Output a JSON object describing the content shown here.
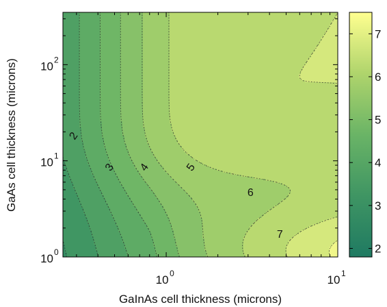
{
  "chart_data": {
    "type": "contour",
    "xlabel": "GaInAs cell thickness (microns)",
    "ylabel": "GaAs cell thickness (microns)",
    "x_scale": "log",
    "y_scale": "log",
    "xlim": [
      0.25,
      10
    ],
    "ylim": [
      1,
      350
    ],
    "x_ticks": [
      {
        "value": 1,
        "base": "10",
        "exp": "0"
      },
      {
        "value": 10,
        "base": "10",
        "exp": "1"
      }
    ],
    "y_ticks": [
      {
        "value": 1,
        "base": "10",
        "exp": "0"
      },
      {
        "value": 10,
        "base": "10",
        "exp": "1"
      },
      {
        "value": 100,
        "base": "10",
        "exp": "2"
      }
    ],
    "contour_labels": [
      {
        "text": "2",
        "x": 0.29,
        "y": 18
      },
      {
        "text": "3",
        "x": 0.47,
        "y": 8.5
      },
      {
        "text": "4",
        "x": 0.75,
        "y": 8.5
      },
      {
        "text": "5",
        "x": 1.4,
        "y": 8.5
      },
      {
        "text": "6",
        "x": 3.1,
        "y": 4.6
      },
      {
        "text": "7",
        "x": 4.6,
        "y": 1.7
      }
    ],
    "colorbar": {
      "range": [
        1.8,
        7.5
      ],
      "ticks": [
        "2",
        "3",
        "4",
        "5",
        "6",
        "7"
      ],
      "tick_values": [
        2,
        3,
        4,
        5,
        6,
        7
      ],
      "colors": [
        "#1f7a62",
        "#ffff90"
      ]
    },
    "grid": false
  }
}
